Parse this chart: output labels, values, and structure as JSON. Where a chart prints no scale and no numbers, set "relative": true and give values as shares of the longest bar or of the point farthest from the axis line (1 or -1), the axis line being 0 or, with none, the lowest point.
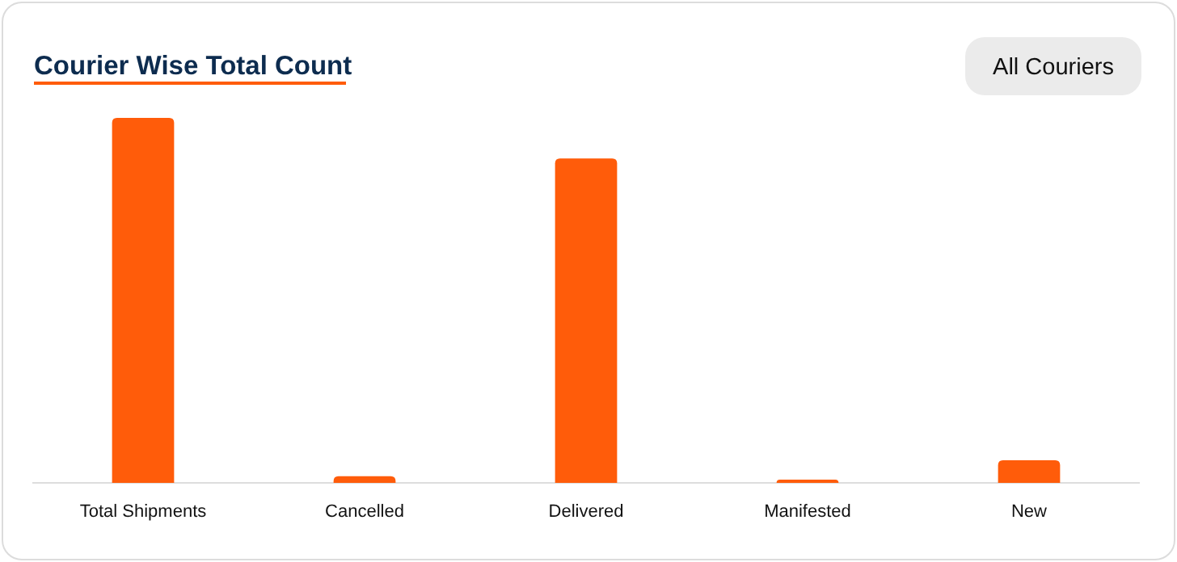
{
  "chart_data": {
    "type": "bar",
    "title": "Courier Wise Total Count",
    "relative": true,
    "categories": [
      "Total Shipments",
      "Cancelled",
      "Delivered",
      "Manifested",
      "New"
    ],
    "values": [
      1,
      0.018,
      0.889,
      0.009,
      0.062
    ],
    "color": "#ff5c0a",
    "annotations": [
      "All Couriers"
    ]
  }
}
